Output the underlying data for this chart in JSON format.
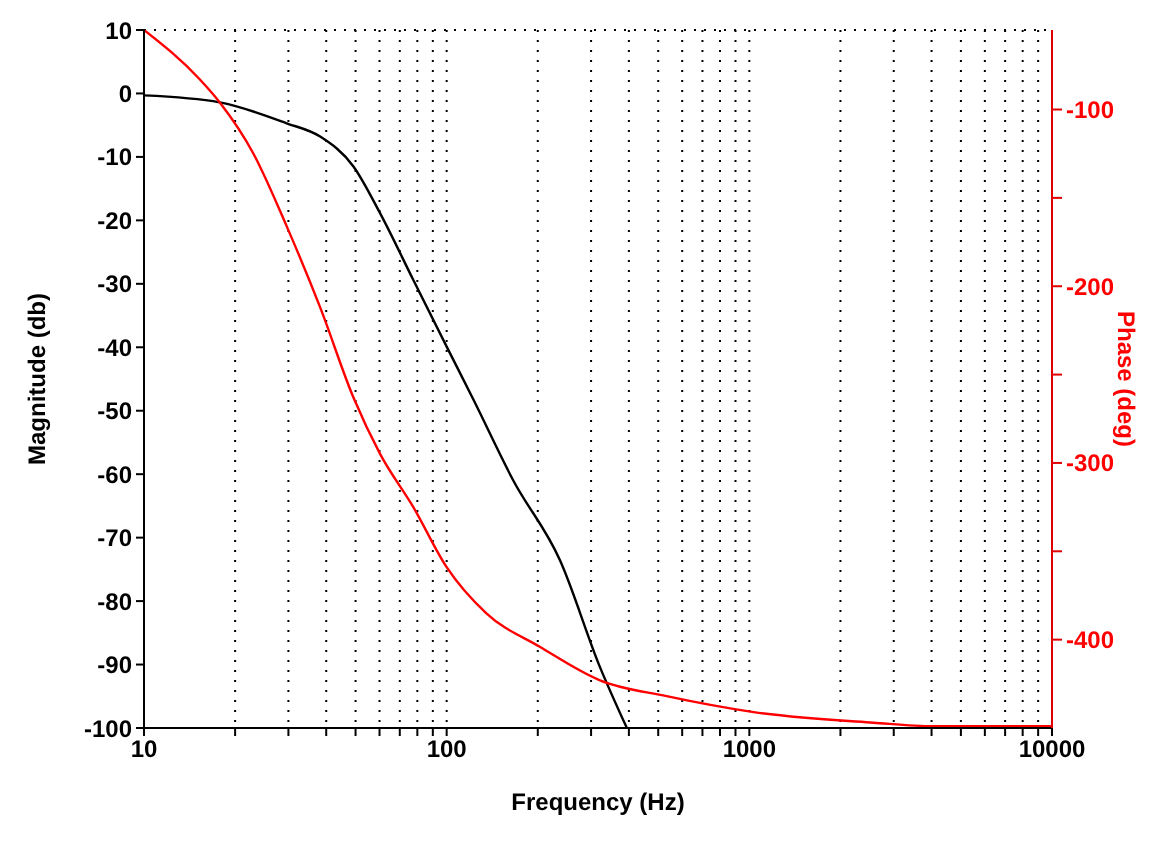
{
  "chart_data": {
    "type": "line",
    "xlabel": "Frequency (Hz)",
    "ylabel": "Magnitude (db)",
    "y2label": "Phase (deg)",
    "log": "x",
    "grid": true,
    "legend": false,
    "marker": "none",
    "line_style": "solid",
    "xlim": [
      10,
      10000
    ],
    "xticks": [
      10,
      {
        "value": 20,
        "label": null
      },
      {
        "value": 30,
        "label": null
      },
      {
        "value": 40,
        "label": null
      },
      {
        "value": 50,
        "label": null
      },
      {
        "value": 60,
        "label": null
      },
      {
        "value": 70,
        "label": null
      },
      {
        "value": 80,
        "label": null
      },
      {
        "value": 90,
        "label": null
      },
      100,
      {
        "value": 200,
        "label": null
      },
      {
        "value": 300,
        "label": null
      },
      {
        "value": 400,
        "label": null
      },
      {
        "value": 500,
        "label": null
      },
      {
        "value": 600,
        "label": null
      },
      {
        "value": 700,
        "label": null
      },
      {
        "value": 800,
        "label": null
      },
      {
        "value": 900,
        "label": null
      },
      1000,
      {
        "value": 2000,
        "label": null
      },
      {
        "value": 3000,
        "label": null
      },
      {
        "value": 4000,
        "label": null
      },
      {
        "value": 5000,
        "label": null
      },
      {
        "value": 6000,
        "label": null
      },
      {
        "value": 7000,
        "label": null
      },
      {
        "value": 8000,
        "label": null
      },
      {
        "value": 9000,
        "label": null
      },
      10000
    ],
    "ylim": [
      -100,
      10
    ],
    "yticks": [
      -100,
      -90,
      -80,
      -70,
      -60,
      -50,
      -40,
      -30,
      -20,
      -10,
      0,
      10
    ],
    "y2lim": [
      -450,
      -55
    ],
    "y2ticks": [
      -400,
      {
        "value": -350,
        "label": null
      },
      -300,
      {
        "value": -250,
        "label": null
      },
      -200,
      {
        "value": -150,
        "label": null
      },
      -100
    ],
    "series": [
      {
        "color": "#000000",
        "x": [
          10,
          17.8,
          29.6,
          38.2,
          49.2,
          60.3,
          77.6,
          100,
          123,
          166,
          237,
          321,
          393
        ],
        "values": [
          -0.3,
          -1.4,
          -4.7,
          -6.8,
          -11.5,
          -18.9,
          -29.4,
          -39.9,
          -48.4,
          -61,
          -73.6,
          -90.4,
          -99.9
        ]
      },
      {
        "color": "#ff0000",
        "axis": "y2",
        "x": [
          10,
          15.3,
          17.8,
          23,
          29.6,
          38.2,
          49.2,
          60.3,
          77.6,
          100,
          135,
          203,
          321,
          533,
          1033,
          2570,
          4050,
          10000
        ],
        "values": [
          -55,
          -83,
          -96,
          -125,
          -166,
          -212,
          -263,
          -295,
          -325,
          -359,
          -385,
          -404,
          -423,
          -432,
          -441,
          -447,
          -449,
          -449
        ]
      }
    ]
  }
}
